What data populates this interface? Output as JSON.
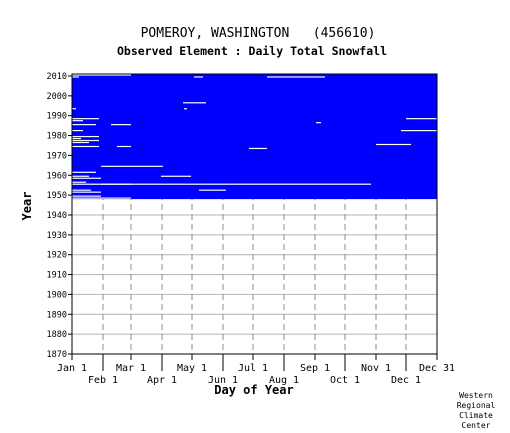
{
  "chart_data": {
    "type": "heatmap",
    "title": "POMEROY, WASHINGTON   (456610)",
    "subtitle": "Observed Element : Daily Total Snowfall",
    "xlabel": "Day of Year",
    "ylabel": "Year",
    "xlim": [
      1,
      366
    ],
    "ylim": [
      1870,
      2011
    ],
    "x_ticks_top_row": [
      {
        "label": "Jan 1",
        "day": 1
      },
      {
        "label": "Mar 1",
        "day": 60
      },
      {
        "label": "May 1",
        "day": 121
      },
      {
        "label": "Jul 1",
        "day": 182
      },
      {
        "label": "Sep 1",
        "day": 244
      },
      {
        "label": "Nov 1",
        "day": 305
      },
      {
        "label": "Dec 31",
        "day": 366
      }
    ],
    "x_ticks_bottom_row": [
      {
        "label": "Feb 1",
        "day": 32
      },
      {
        "label": "Apr 1",
        "day": 91
      },
      {
        "label": "Jun 1",
        "day": 152
      },
      {
        "label": "Aug 1",
        "day": 213
      },
      {
        "label": "Oct 1",
        "day": 274
      },
      {
        "label": "Dec 1",
        "day": 335
      }
    ],
    "y_ticks": [
      1870,
      1880,
      1890,
      1900,
      1910,
      1920,
      1930,
      1940,
      1950,
      1960,
      1970,
      1980,
      1990,
      2000,
      2010
    ],
    "grid": true,
    "data_color": "#0000ff",
    "data_coverage": {
      "first_year": 1948,
      "last_year": 2010,
      "description": "nearly continuous daily observations"
    },
    "gaps": [
      {
        "year": 1948,
        "start_day": 1,
        "end_day": 60
      },
      {
        "year": 1949,
        "start_day": 1,
        "end_day": 30
      },
      {
        "year": 1951,
        "start_day": 1,
        "end_day": 30
      },
      {
        "year": 1952,
        "start_day": 1,
        "end_day": 20
      },
      {
        "year": 1952,
        "start_day": 128,
        "end_day": 155
      },
      {
        "year": 1955,
        "start_day": 1,
        "end_day": 60
      },
      {
        "year": 1955,
        "start_day": 30,
        "end_day": 300
      },
      {
        "year": 1956,
        "start_day": 1,
        "end_day": 15
      },
      {
        "year": 1958,
        "start_day": 1,
        "end_day": 30
      },
      {
        "year": 1959,
        "start_day": 1,
        "end_day": 18
      },
      {
        "year": 1959,
        "start_day": 90,
        "end_day": 120
      },
      {
        "year": 1961,
        "start_day": 1,
        "end_day": 25
      },
      {
        "year": 1964,
        "start_day": 30,
        "end_day": 92
      },
      {
        "year": 1973,
        "start_day": 178,
        "end_day": 196
      },
      {
        "year": 1974,
        "start_day": 1,
        "end_day": 28
      },
      {
        "year": 1974,
        "start_day": 46,
        "end_day": 60
      },
      {
        "year": 1975,
        "start_day": 305,
        "end_day": 340
      },
      {
        "year": 1976,
        "start_day": 1,
        "end_day": 18
      },
      {
        "year": 1977,
        "start_day": 1,
        "end_day": 28
      },
      {
        "year": 1978,
        "start_day": 1,
        "end_day": 10
      },
      {
        "year": 1979,
        "start_day": 1,
        "end_day": 28
      },
      {
        "year": 1982,
        "start_day": 1,
        "end_day": 12
      },
      {
        "year": 1982,
        "start_day": 330,
        "end_day": 366
      },
      {
        "year": 1985,
        "start_day": 1,
        "end_day": 25
      },
      {
        "year": 1985,
        "start_day": 40,
        "end_day": 60
      },
      {
        "year": 1986,
        "start_day": 245,
        "end_day": 250
      },
      {
        "year": 1987,
        "start_day": 1,
        "end_day": 12
      },
      {
        "year": 1988,
        "start_day": 1,
        "end_day": 28
      },
      {
        "year": 1988,
        "start_day": 335,
        "end_day": 366
      },
      {
        "year": 1993,
        "start_day": 1,
        "end_day": 5
      },
      {
        "year": 1993,
        "start_day": 113,
        "end_day": 116
      },
      {
        "year": 1996,
        "start_day": 112,
        "end_day": 135
      },
      {
        "year": 2009,
        "start_day": 1,
        "end_day": 8
      },
      {
        "year": 2009,
        "start_day": 123,
        "end_day": 132
      },
      {
        "year": 2009,
        "start_day": 196,
        "end_day": 254
      },
      {
        "year": 2010,
        "start_day": 1,
        "end_day": 60
      }
    ]
  },
  "credit": [
    "Western",
    "Regional",
    "Climate",
    "Center"
  ]
}
